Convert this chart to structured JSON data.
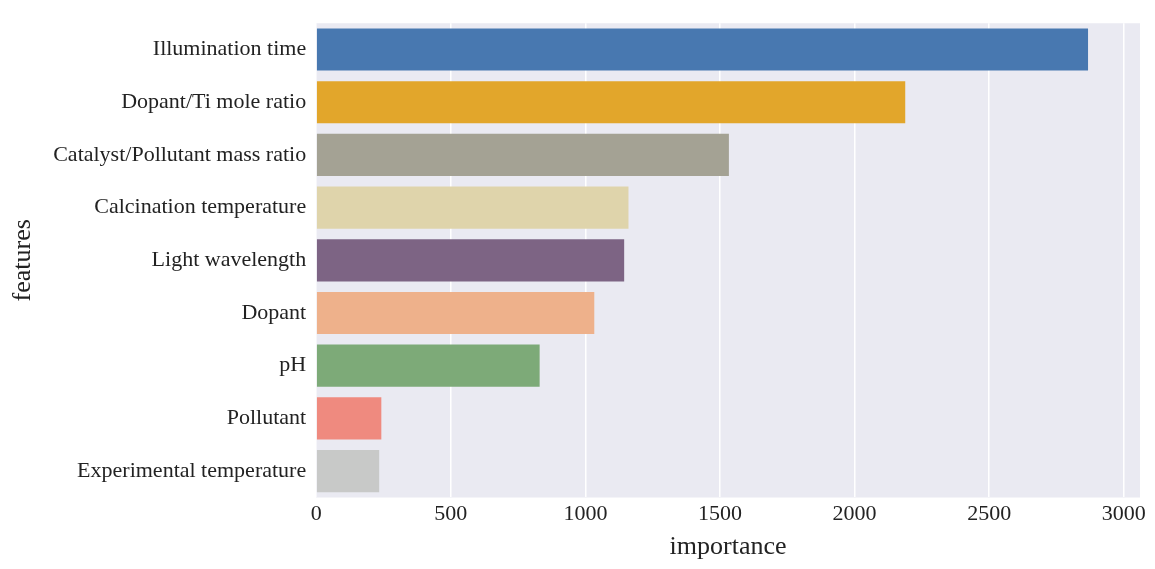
{
  "chart_data": {
    "type": "bar",
    "orientation": "horizontal",
    "xlabel": "importance",
    "ylabel": "features",
    "categories": [
      "Illumination time",
      "Dopant/Ti mole ratio",
      "Catalyst/Pollutant mass ratio",
      "Calcination temperature",
      "Light wavelength",
      "Dopant",
      "pH",
      "Pollutant",
      "Experimental temperature"
    ],
    "values": [
      2867,
      2188,
      1533,
      1160,
      1144,
      1033,
      830,
      242,
      234
    ],
    "colors": [
      "#4878b0",
      "#e2a62b",
      "#a4a294",
      "#dfd4ab",
      "#7d6484",
      "#eeb18b",
      "#7daa78",
      "#ef8a7f",
      "#c8c9c8"
    ],
    "xlim": [
      0,
      3060
    ],
    "xticks": [
      0,
      500,
      1000,
      1500,
      2000,
      2500,
      3000
    ],
    "grid": "x",
    "legend": false
  }
}
